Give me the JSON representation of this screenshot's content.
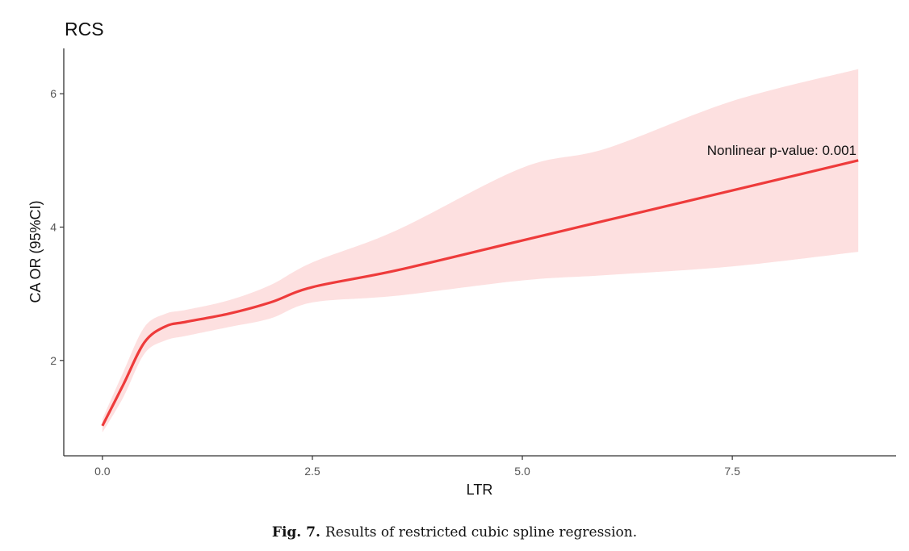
{
  "chart_data": {
    "type": "line",
    "title": "RCS",
    "xlabel": "LTR",
    "ylabel": "CA OR (95%CI)",
    "xlim": [
      -0.46,
      9.45
    ],
    "ylim": [
      0.57,
      6.68
    ],
    "xticks": [
      0.0,
      2.5,
      5.0,
      7.5
    ],
    "xtick_labels": [
      "0.0",
      "2.5",
      "5.0",
      "7.5"
    ],
    "yticks": [
      2,
      4,
      6
    ],
    "ytick_labels": [
      "2",
      "4",
      "6"
    ],
    "grid": false,
    "annotation": "Nonlinear p-value: 0.001",
    "series": [
      {
        "x": [
          0.0,
          0.25,
          0.5,
          0.75,
          1.0,
          1.5,
          2.0,
          2.5,
          3.5,
          5.0,
          6.0,
          7.5,
          9.0
        ],
        "y": [
          1.02,
          1.64,
          2.27,
          2.51,
          2.58,
          2.7,
          2.87,
          3.1,
          3.35,
          3.8,
          4.1,
          4.55,
          5.0
        ],
        "lower": [
          0.92,
          1.45,
          2.1,
          2.3,
          2.37,
          2.5,
          2.63,
          2.87,
          2.97,
          3.2,
          3.28,
          3.41,
          3.63
        ],
        "upper": [
          1.12,
          1.83,
          2.5,
          2.7,
          2.76,
          2.9,
          3.13,
          3.47,
          3.95,
          4.89,
          5.18,
          5.89,
          6.37
        ]
      }
    ],
    "colors": {
      "line": "#ee3b3b",
      "band": "#fde0e0",
      "axis": "#333333"
    }
  },
  "caption": {
    "label": "Fig. 7.",
    "text": "Results of restricted cubic spline regression."
  }
}
